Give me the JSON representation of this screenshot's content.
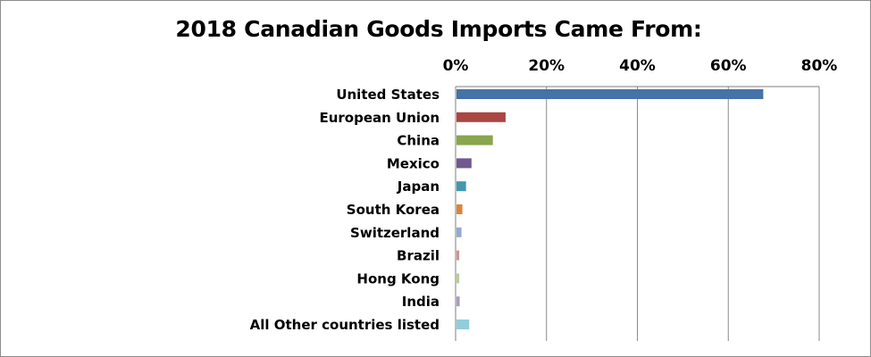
{
  "chart_data": {
    "type": "bar",
    "orientation": "horizontal",
    "title": "2018 Canadian Goods Imports Came From:",
    "xlabel": "",
    "ylabel": "",
    "xlim": [
      0,
      0.8
    ],
    "x_ticks": [
      0,
      0.2,
      0.4,
      0.6,
      0.8
    ],
    "x_tick_labels": [
      "0%",
      "20%",
      "40%",
      "60%",
      "80%"
    ],
    "x_axis_position": "top",
    "grid": "vertical",
    "legend": "none",
    "categories": [
      "United States",
      "European Union",
      "China",
      "Mexico",
      "Japan",
      "South Korea",
      "Switzerland",
      "Brazil",
      "Hong Kong",
      "India",
      "All Other countries listed"
    ],
    "values": [
      0.675,
      0.108,
      0.08,
      0.033,
      0.021,
      0.013,
      0.011,
      0.006,
      0.006,
      0.007,
      0.028
    ],
    "colors": [
      "#4572a7",
      "#aa4643",
      "#89a54e",
      "#71588f",
      "#4198af",
      "#db843d",
      "#93a9cf",
      "#d19392",
      "#b9cd96",
      "#a99bbd",
      "#92cddc"
    ]
  }
}
